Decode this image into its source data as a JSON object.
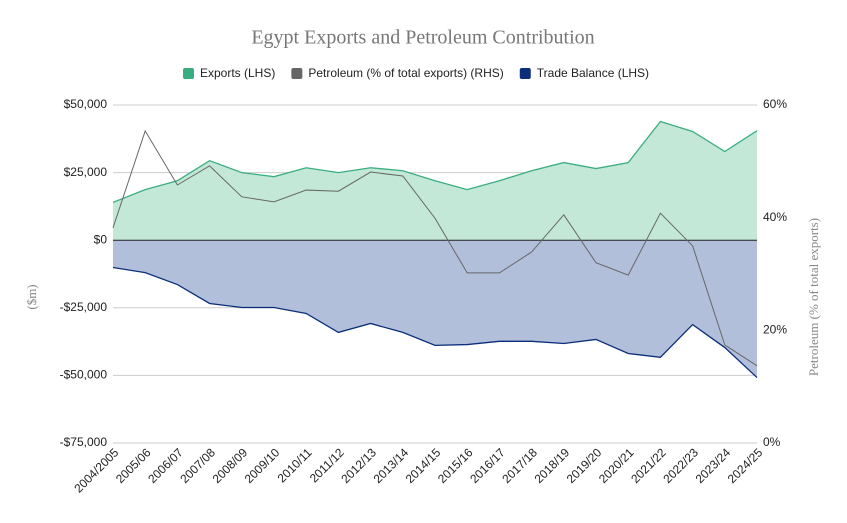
{
  "chart_data": {
    "type": "area",
    "title": "Egypt Exports and Petroleum Contribution",
    "categories": [
      "2004/2005",
      "2005/06",
      "2006/07",
      "2007/08",
      "2008/09",
      "2009/10",
      "2010/11",
      "2011/12",
      "2012/13",
      "2013/14",
      "2014/15",
      "2015/16",
      "2016/17",
      "2017/18",
      "2018/19",
      "2019/20",
      "2020/21",
      "2021/22",
      "2022/23",
      "2023/24",
      "2024/25"
    ],
    "series": [
      {
        "name": "Exports (LHS)",
        "color": "#3aae80",
        "fill": "#c3e8d8",
        "type": "area",
        "values": [
          14000,
          18700,
          22000,
          29400,
          25000,
          23500,
          26800,
          25000,
          26800,
          25700,
          22000,
          18700,
          22000,
          25700,
          28700,
          26500,
          28700,
          43900,
          40200,
          32800,
          40500
        ]
      },
      {
        "name": "Petroleum (% of total exports) (RHS)",
        "color": "#666666",
        "type": "line",
        "axis": "y2",
        "values": [
          38.2,
          55.4,
          45.8,
          49.2,
          43.7,
          42.8,
          44.9,
          44.7,
          48.1,
          47.4,
          39.9,
          30.2,
          30.2,
          33.9,
          40.5,
          32.0,
          29.8,
          40.8,
          35.0,
          17.4,
          13.7
        ]
      },
      {
        "name": "Trade Balance (LHS)",
        "color": "#0b2e7a",
        "fill": "#b1bfda",
        "type": "area",
        "values": [
          -10100,
          -12000,
          -16400,
          -23400,
          -24900,
          -24900,
          -27100,
          -34100,
          -30800,
          -34100,
          -38900,
          -38600,
          -37400,
          -37400,
          -38200,
          -36700,
          -41900,
          -43300,
          -31200,
          -39700,
          -50800
        ]
      }
    ],
    "ylabel": "($m)",
    "y2label": "Petroleum (% of total exports)",
    "ylim": [
      -75000,
      50000
    ],
    "yticks": [
      {
        "value": -75000,
        "label": "-$75,000"
      },
      {
        "value": -50000,
        "label": "-$50,000"
      },
      {
        "value": -25000,
        "label": "-$25,000"
      },
      {
        "value": 0,
        "label": "$0"
      },
      {
        "value": 25000,
        "label": "$25,000"
      },
      {
        "value": 50000,
        "label": "$50,000"
      }
    ],
    "y2lim": [
      0,
      60
    ],
    "y2ticks": [
      {
        "value": 0,
        "label": "0%"
      },
      {
        "value": 20,
        "label": "20%"
      },
      {
        "value": 40,
        "label": "40%"
      },
      {
        "value": 60,
        "label": "60%"
      }
    ],
    "grid": true,
    "legend": "top"
  }
}
